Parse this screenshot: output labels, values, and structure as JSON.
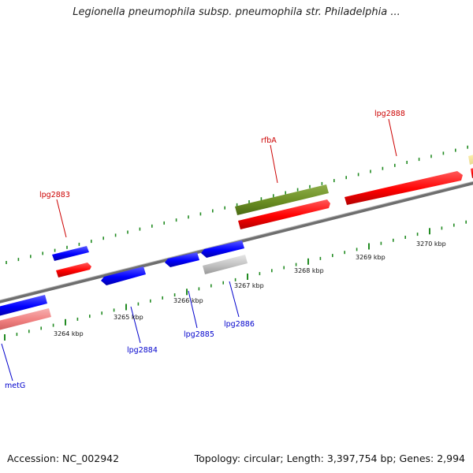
{
  "title": "Legionella pneumophila subsp. pneumophila str. Philadelphia ...",
  "footer": {
    "accession": "Accession: NC_002942",
    "summary": "Topology: circular; Length: 3,397,754 bp; Genes: 2,994"
  },
  "colors": {
    "forward_gene": "#ff0000",
    "reverse_gene": "#0000ff",
    "rfbA": "#6b8e23",
    "pseudo_forward": "#f08080",
    "pseudo_reverse": "#c0c0c0",
    "backbone": "#888888",
    "tick": "#228b22",
    "label_forward": "#cc0000",
    "label_reverse": "#0000cc"
  },
  "scale_labels": [
    "3264 kbp",
    "3265 kbp",
    "3266 kbp",
    "3267 kbp",
    "3268 kbp",
    "3269 kbp",
    "3270 kbp"
  ],
  "gene_labels": {
    "lpg2883": "lpg2883",
    "rfbA": "rfbA",
    "lpg2888": "lpg2888",
    "metG": "metG",
    "lpg2884": "lpg2884",
    "lpg2885": "lpg2885",
    "lpg2886": "lpg2886"
  }
}
